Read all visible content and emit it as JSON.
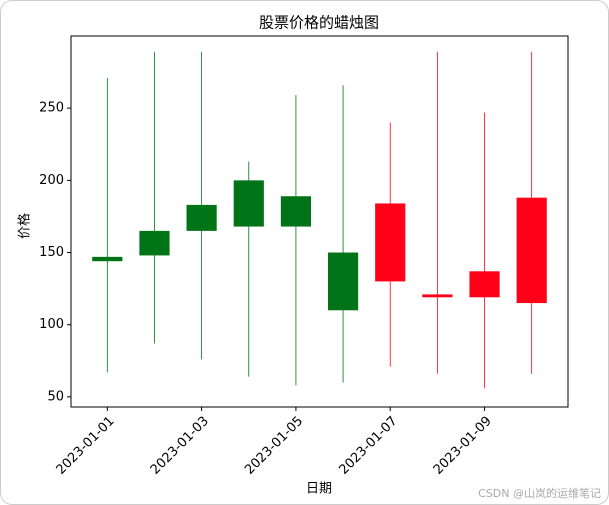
{
  "chart_data": {
    "type": "candlestick",
    "title": "股票价格的蜡烛图",
    "x_label": "日期",
    "y_label": "价格",
    "x": [
      "2023-01-01",
      "2023-01-02",
      "2023-01-03",
      "2023-01-04",
      "2023-01-05",
      "2023-01-06",
      "2023-01-07",
      "2023-01-08",
      "2023-01-09",
      "2023-01-10"
    ],
    "open": [
      147,
      165,
      183,
      200,
      189,
      150,
      130,
      119,
      119,
      115
    ],
    "high": [
      271,
      289,
      289,
      213,
      259,
      266,
      240,
      289,
      247,
      289
    ],
    "low": [
      67,
      87,
      76,
      64,
      58,
      60,
      71,
      66,
      56,
      66
    ],
    "close": [
      144,
      148,
      165,
      168,
      168,
      110,
      184,
      121,
      137,
      188
    ],
    "up_color": "#ff0018",
    "down_color": "#007417",
    "xticks": [
      "2023-01-01",
      "2023-01-03",
      "2023-01-05",
      "2023-01-07",
      "2023-01-09"
    ],
    "ylim": [
      43,
      300
    ],
    "yticks": [
      50,
      100,
      150,
      200,
      250
    ]
  },
  "watermark": "CSDN @山岚的运维笔记"
}
